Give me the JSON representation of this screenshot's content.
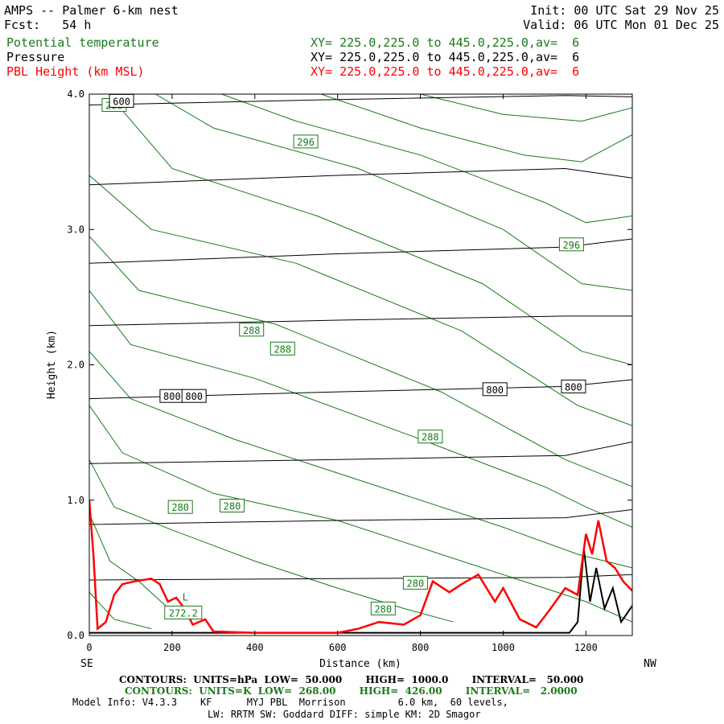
{
  "header": {
    "title": "AMPS -- Palmer 6-km nest",
    "fcst": "Fcst:   54 h",
    "init": "Init: 00 UTC Sat 29 Nov 25",
    "valid": "Valid: 06 UTC Mon 01 Dec 25",
    "fields": [
      {
        "name": "Potential temperature",
        "xy": "XY= 225.0,225.0 to 445.0,225.0,av=  6",
        "color": "#1a7a1a"
      },
      {
        "name": "Pressure",
        "xy": "XY= 225.0,225.0 to 445.0,225.0,av=  6",
        "color": "#000000"
      },
      {
        "name": "PBL Height (km MSL)",
        "xy": "XY= 225.0,225.0 to 445.0,225.0,av=  6",
        "color": "#ff0000"
      }
    ]
  },
  "chart_data": {
    "type": "line",
    "xlabel": "Distance (km)",
    "ylabel": "Height (km)",
    "xlim": [
      0,
      1312
    ],
    "ylim": [
      0,
      4.0
    ],
    "x_ticks": [
      "0",
      "200",
      "400",
      "600",
      "800",
      "1000",
      "1200"
    ],
    "y_ticks": [
      "0.0",
      "1.0",
      "2.0",
      "3.0",
      "4.0"
    ],
    "left_end": "SE",
    "right_end": "NW",
    "pressure_contours": [
      {
        "heights": [
          [
            0,
            0.41
          ],
          [
            600,
            0.42
          ],
          [
            1150,
            0.43
          ],
          [
            1312,
            0.45
          ]
        ]
      },
      {
        "heights": [
          [
            0,
            0.82
          ],
          [
            600,
            0.85
          ],
          [
            1150,
            0.87
          ],
          [
            1312,
            0.93
          ]
        ]
      },
      {
        "heights": [
          [
            0,
            1.27
          ],
          [
            600,
            1.3
          ],
          [
            1150,
            1.33
          ],
          [
            1312,
            1.43
          ]
        ]
      },
      {
        "heights": [
          [
            0,
            1.75
          ],
          [
            600,
            1.8
          ],
          [
            1150,
            1.84
          ],
          [
            1312,
            1.89
          ]
        ]
      },
      {
        "heights": [
          [
            0,
            2.29
          ],
          [
            600,
            2.33
          ],
          [
            1150,
            2.36
          ],
          [
            1312,
            2.36
          ]
        ]
      },
      {
        "heights": [
          [
            0,
            2.75
          ],
          [
            600,
            2.82
          ],
          [
            1150,
            2.87
          ],
          [
            1312,
            2.93
          ]
        ]
      },
      {
        "heights": [
          [
            0,
            3.33
          ],
          [
            600,
            3.4
          ],
          [
            1150,
            3.45
          ],
          [
            1312,
            3.38
          ]
        ]
      },
      {
        "heights": [
          [
            0,
            3.92
          ],
          [
            600,
            3.96
          ],
          [
            1150,
            3.99
          ],
          [
            1312,
            3.98
          ]
        ]
      }
    ],
    "theta_contours": [
      {
        "pts": [
          [
            0,
            0.32
          ],
          [
            60,
            0.12
          ],
          [
            150,
            0.05
          ]
        ]
      },
      {
        "pts": [
          [
            0,
            0.9
          ],
          [
            50,
            0.55
          ],
          [
            120,
            0.4
          ],
          [
            220,
            0.12
          ]
        ]
      },
      {
        "pts": [
          [
            0,
            1.3
          ],
          [
            60,
            0.95
          ],
          [
            200,
            0.78
          ],
          [
            400,
            0.55
          ],
          [
            600,
            0.35
          ],
          [
            760,
            0.2
          ],
          [
            880,
            0.1
          ]
        ]
      },
      {
        "pts": [
          [
            0,
            1.7
          ],
          [
            80,
            1.35
          ],
          [
            300,
            1.05
          ],
          [
            600,
            0.85
          ],
          [
            900,
            0.55
          ],
          [
            1100,
            0.35
          ],
          [
            1200,
            0.25
          ],
          [
            1312,
            0.1
          ]
        ]
      },
      {
        "pts": [
          [
            0,
            2.1
          ],
          [
            100,
            1.75
          ],
          [
            350,
            1.45
          ],
          [
            700,
            1.1
          ],
          [
            1000,
            0.8
          ],
          [
            1180,
            0.6
          ],
          [
            1312,
            0.5
          ]
        ]
      },
      {
        "pts": [
          [
            0,
            2.55
          ],
          [
            100,
            2.15
          ],
          [
            400,
            1.9
          ],
          [
            800,
            1.45
          ],
          [
            1100,
            1.1
          ],
          [
            1200,
            0.95
          ],
          [
            1312,
            0.8
          ]
        ]
      },
      {
        "pts": [
          [
            0,
            2.95
          ],
          [
            120,
            2.55
          ],
          [
            450,
            2.3
          ],
          [
            850,
            1.8
          ],
          [
            1150,
            1.3
          ],
          [
            1312,
            1.1
          ]
        ]
      },
      {
        "pts": [
          [
            0,
            3.4
          ],
          [
            150,
            3.0
          ],
          [
            500,
            2.75
          ],
          [
            900,
            2.25
          ],
          [
            1180,
            1.7
          ],
          [
            1312,
            1.55
          ]
        ]
      },
      {
        "pts": [
          [
            60,
            3.95
          ],
          [
            200,
            3.45
          ],
          [
            550,
            3.1
          ],
          [
            950,
            2.6
          ],
          [
            1190,
            2.1
          ],
          [
            1312,
            2.0
          ]
        ]
      },
      {
        "pts": [
          [
            160,
            4.0
          ],
          [
            300,
            3.75
          ],
          [
            650,
            3.45
          ],
          [
            1000,
            3.0
          ],
          [
            1190,
            2.6
          ],
          [
            1312,
            2.55
          ]
        ]
      },
      {
        "pts": [
          [
            320,
            4.0
          ],
          [
            500,
            3.8
          ],
          [
            800,
            3.55
          ],
          [
            1100,
            3.2
          ],
          [
            1200,
            3.05
          ],
          [
            1312,
            3.1
          ]
        ]
      },
      {
        "pts": [
          [
            560,
            4.0
          ],
          [
            800,
            3.75
          ],
          [
            1050,
            3.55
          ],
          [
            1190,
            3.5
          ],
          [
            1312,
            3.7
          ]
        ]
      },
      {
        "pts": [
          [
            800,
            4.0
          ],
          [
            1000,
            3.85
          ],
          [
            1190,
            3.8
          ],
          [
            1312,
            3.9
          ]
        ]
      }
    ],
    "pressure_labels": [
      {
        "x": 200,
        "y": 1.77,
        "text": "800"
      },
      {
        "x": 253,
        "y": 1.77,
        "text": "800"
      },
      {
        "x": 980,
        "y": 1.82,
        "text": "800"
      },
      {
        "x": 1170,
        "y": 1.84,
        "text": "800"
      },
      {
        "x": 78,
        "y": 3.95,
        "text": "600"
      }
    ],
    "theta_labels": [
      {
        "x": 60,
        "y": 3.92,
        "text": "288"
      },
      {
        "x": 523,
        "y": 3.65,
        "text": "296"
      },
      {
        "x": 1165,
        "y": 2.89,
        "text": "296"
      },
      {
        "x": 392,
        "y": 2.26,
        "text": "288"
      },
      {
        "x": 467,
        "y": 2.12,
        "text": "288"
      },
      {
        "x": 824,
        "y": 1.47,
        "text": "288"
      },
      {
        "x": 220,
        "y": 0.95,
        "text": "280"
      },
      {
        "x": 345,
        "y": 0.96,
        "text": "280"
      },
      {
        "x": 788,
        "y": 0.39,
        "text": "280"
      },
      {
        "x": 710,
        "y": 0.2,
        "text": "280"
      },
      {
        "x": 227,
        "y": 0.17,
        "text": "272.2"
      }
    ],
    "low_marker": {
      "x": 232,
      "y": 0.26,
      "text": "L"
    },
    "pbl_height": [
      [
        0,
        1.0
      ],
      [
        10,
        0.6
      ],
      [
        20,
        0.05
      ],
      [
        40,
        0.1
      ],
      [
        60,
        0.3
      ],
      [
        80,
        0.38
      ],
      [
        110,
        0.4
      ],
      [
        150,
        0.42
      ],
      [
        170,
        0.38
      ],
      [
        190,
        0.25
      ],
      [
        210,
        0.28
      ],
      [
        230,
        0.2
      ],
      [
        250,
        0.08
      ],
      [
        280,
        0.12
      ],
      [
        300,
        0.03
      ],
      [
        400,
        0.02
      ],
      [
        600,
        0.02
      ],
      [
        650,
        0.05
      ],
      [
        700,
        0.1
      ],
      [
        760,
        0.08
      ],
      [
        800,
        0.15
      ],
      [
        830,
        0.4
      ],
      [
        870,
        0.32
      ],
      [
        900,
        0.38
      ],
      [
        940,
        0.45
      ],
      [
        980,
        0.25
      ],
      [
        1000,
        0.35
      ],
      [
        1040,
        0.12
      ],
      [
        1080,
        0.06
      ],
      [
        1110,
        0.18
      ],
      [
        1150,
        0.35
      ],
      [
        1180,
        0.3
      ],
      [
        1200,
        0.75
      ],
      [
        1215,
        0.6
      ],
      [
        1230,
        0.85
      ],
      [
        1250,
        0.55
      ],
      [
        1270,
        0.5
      ],
      [
        1290,
        0.4
      ],
      [
        1312,
        0.33
      ]
    ],
    "terrain": [
      [
        0,
        0.02
      ],
      [
        1160,
        0.02
      ],
      [
        1180,
        0.1
      ],
      [
        1195,
        0.64
      ],
      [
        1210,
        0.25
      ],
      [
        1225,
        0.5
      ],
      [
        1245,
        0.2
      ],
      [
        1265,
        0.35
      ],
      [
        1285,
        0.1
      ],
      [
        1312,
        0.22
      ]
    ]
  },
  "footer": {
    "line1": "CONTOURS:  UNITS=hPa  LOW=  50.000       HIGH=  1000.0       INTERVAL=   50.000",
    "line2": "CONTOURS:  UNITS=K  LOW=  268.00       HIGH=  426.00       INTERVAL=   2.0000",
    "line3": "Model Info: V4.3.3    KF      MYJ PBL  Morrison         6.0 km,  60 levels,",
    "line4": "LW: RRTM SW: Goddard DIFF: simple KM: 2D Smagor"
  }
}
